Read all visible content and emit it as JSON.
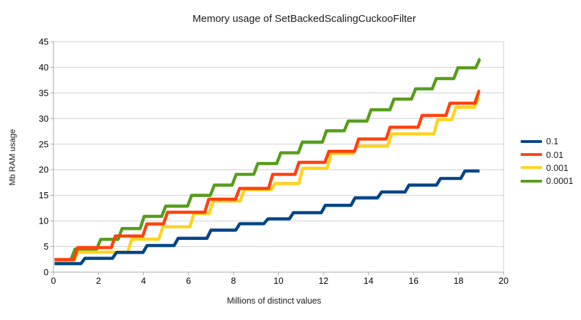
{
  "title": "Memory usage of SetBackedScalingCuckooFilter",
  "x_axis": {
    "label": "Millions of distinct values"
  },
  "y_axis": {
    "label": "Mb RAM usage"
  },
  "legend": {
    "items": [
      {
        "label": "0.1",
        "color": "#004586"
      },
      {
        "label": "0.01",
        "color": "#FF420E"
      },
      {
        "label": "0.001",
        "color": "#FFD320"
      },
      {
        "label": "0.0001",
        "color": "#579D1C"
      }
    ]
  },
  "colors": {
    "background": "#ffffff",
    "grid": "#cdcdcd",
    "axis": "#a6a6a6",
    "text": "#000000"
  },
  "chart_data": {
    "type": "line",
    "style": "step-staircase",
    "title": "Memory usage of SetBackedScalingCuckooFilter",
    "xlabel": "Millions of distinct values",
    "ylabel": "Mb RAM usage",
    "x_min": 0,
    "x_max": 20,
    "y_min": 0,
    "y_max": 45,
    "x_ticks": [
      0,
      2,
      4,
      6,
      8,
      10,
      12,
      14,
      16,
      18,
      20
    ],
    "y_ticks": [
      0,
      5,
      10,
      15,
      20,
      25,
      30,
      35,
      40,
      45
    ],
    "grid": "horizontal-only",
    "legend_position": "right",
    "riser_width": 0.18,
    "series": [
      {
        "name": "0.1",
        "color": "#004586",
        "start_y": 1.65,
        "end_x": 18.93,
        "steps": [
          [
            1.22,
            2.7
          ],
          [
            2.62,
            3.85
          ],
          [
            3.98,
            5.2
          ],
          [
            5.36,
            6.6
          ],
          [
            6.82,
            8.2
          ],
          [
            8.1,
            9.45
          ],
          [
            9.35,
            10.4
          ],
          [
            10.48,
            11.6
          ],
          [
            11.9,
            13.05
          ],
          [
            13.22,
            14.5
          ],
          [
            14.4,
            15.65
          ],
          [
            15.62,
            17.0
          ],
          [
            17.02,
            18.3
          ],
          [
            18.1,
            19.75
          ]
        ]
      },
      {
        "name": "0.01",
        "color": "#FF420E",
        "start_y": 2.45,
        "end_x": 18.95,
        "steps": [
          [
            0.9,
            4.8
          ],
          [
            2.57,
            7.05
          ],
          [
            3.97,
            9.4
          ],
          [
            4.89,
            11.7
          ],
          [
            6.72,
            14.25
          ],
          [
            8.09,
            16.35
          ],
          [
            9.56,
            19.1
          ],
          [
            10.73,
            21.45
          ],
          [
            12.06,
            23.6
          ],
          [
            13.38,
            26.0
          ],
          [
            14.78,
            28.3
          ],
          [
            16.2,
            30.6
          ],
          [
            17.44,
            33.0
          ],
          [
            18.72,
            35.3
          ]
        ]
      },
      {
        "name": "0.001",
        "color": "#FFD320",
        "start_y": 2.2,
        "end_x": 18.93,
        "steps": [
          [
            0.91,
            3.9
          ],
          [
            3.3,
            6.45
          ],
          [
            4.68,
            8.85
          ],
          [
            6.06,
            11.45
          ],
          [
            6.92,
            13.9
          ],
          [
            8.3,
            16.1
          ],
          [
            9.67,
            17.3
          ],
          [
            10.9,
            20.3
          ],
          [
            12.16,
            23.2
          ],
          [
            13.3,
            24.6
          ],
          [
            14.85,
            27.0
          ],
          [
            16.9,
            29.8
          ],
          [
            17.7,
            32.2
          ],
          [
            18.7,
            33.9
          ]
        ]
      },
      {
        "name": "0.0001",
        "color": "#579D1C",
        "start_y": 2.45,
        "end_x": 18.95,
        "steps": [
          [
            0.78,
            4.5
          ],
          [
            1.92,
            6.4
          ],
          [
            2.87,
            8.5
          ],
          [
            3.85,
            10.9
          ],
          [
            4.81,
            12.9
          ],
          [
            5.96,
            15.0
          ],
          [
            6.97,
            17.0
          ],
          [
            7.94,
            19.1
          ],
          [
            8.9,
            21.2
          ],
          [
            9.92,
            23.3
          ],
          [
            10.88,
            25.4
          ],
          [
            11.95,
            27.6
          ],
          [
            12.92,
            29.5
          ],
          [
            13.93,
            31.7
          ],
          [
            14.95,
            33.8
          ],
          [
            15.91,
            35.8
          ],
          [
            16.83,
            37.8
          ],
          [
            17.79,
            39.9
          ],
          [
            18.76,
            41.6
          ]
        ]
      }
    ],
    "draw_order": [
      "0.0001",
      "0.001",
      "0.1",
      "0.01"
    ]
  }
}
